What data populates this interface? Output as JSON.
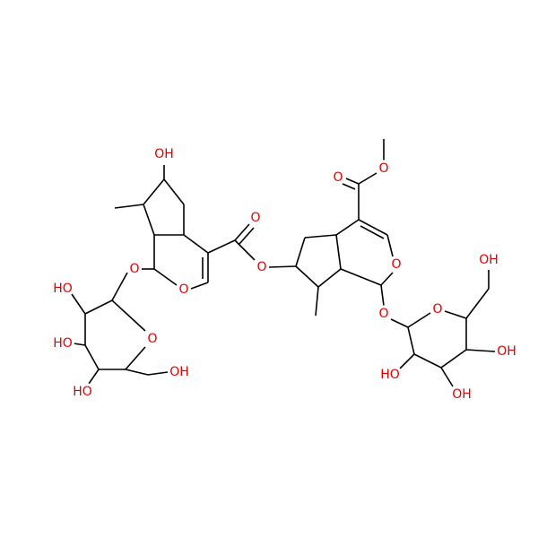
{
  "labels": [
    "OH",
    "O",
    "O",
    "O",
    "O",
    "HO",
    "O",
    "HO",
    "HO",
    "OH",
    "O",
    "O",
    "O",
    "O",
    "O",
    "OH",
    "HO",
    "OH",
    "OH"
  ]
}
